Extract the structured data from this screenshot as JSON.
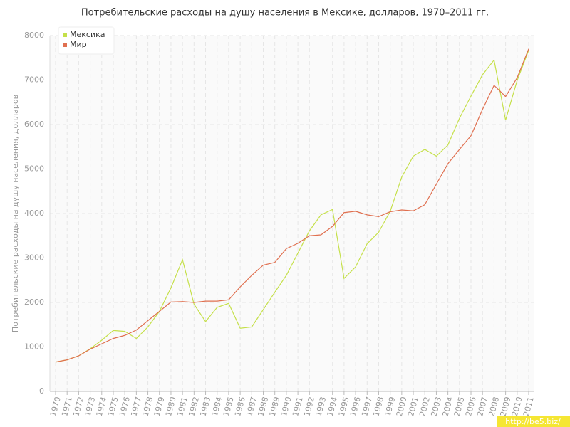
{
  "chart_data": {
    "type": "line",
    "title": "Потребительские расходы на душу населения в Мексике, долларов, 1970–2011 гг.",
    "y_label": "Потребительские расходы на душу населения, долларов",
    "categories": [
      "1970",
      "1971",
      "1972",
      "1973",
      "1974",
      "1975",
      "1976",
      "1977",
      "1978",
      "1979",
      "1980",
      "1981",
      "1982",
      "1983",
      "1984",
      "1985",
      "1986",
      "1987",
      "1988",
      "1989",
      "1990",
      "1991",
      "1992",
      "1993",
      "1994",
      "1995",
      "1996",
      "1997",
      "1998",
      "1999",
      "2000",
      "2001",
      "2002",
      "2003",
      "2004",
      "2005",
      "2006",
      "2007",
      "2008",
      "2009",
      "2010",
      "2011"
    ],
    "series": [
      {
        "name": "Мексика",
        "color": "#c5e04a",
        "values": [
          660,
          710,
          800,
          960,
          1150,
          1370,
          1350,
          1190,
          1450,
          1800,
          2330,
          2960,
          1960,
          1570,
          1890,
          1980,
          1420,
          1450,
          1840,
          2230,
          2610,
          3110,
          3610,
          3970,
          4090,
          2540,
          2800,
          3320,
          3580,
          4050,
          4820,
          5290,
          5440,
          5290,
          5540,
          6140,
          6640,
          7120,
          7450,
          6100,
          6990,
          7670
        ]
      },
      {
        "name": "Мир",
        "color": "#e07050",
        "values": [
          660,
          710,
          800,
          950,
          1070,
          1190,
          1260,
          1380,
          1590,
          1800,
          2010,
          2020,
          2000,
          2030,
          2030,
          2060,
          2350,
          2610,
          2840,
          2900,
          3210,
          3330,
          3500,
          3520,
          3710,
          4020,
          4050,
          3970,
          3930,
          4040,
          4080,
          4060,
          4200,
          4660,
          5120,
          5440,
          5750,
          6340,
          6880,
          6630,
          7050,
          7700
        ]
      }
    ],
    "ylim": [
      0,
      8000
    ],
    "yticks": [
      0,
      1000,
      2000,
      3000,
      4000,
      5000,
      6000,
      7000,
      8000
    ],
    "grid": true,
    "legend": "top-left",
    "watermark": "http://be5.biz/"
  }
}
